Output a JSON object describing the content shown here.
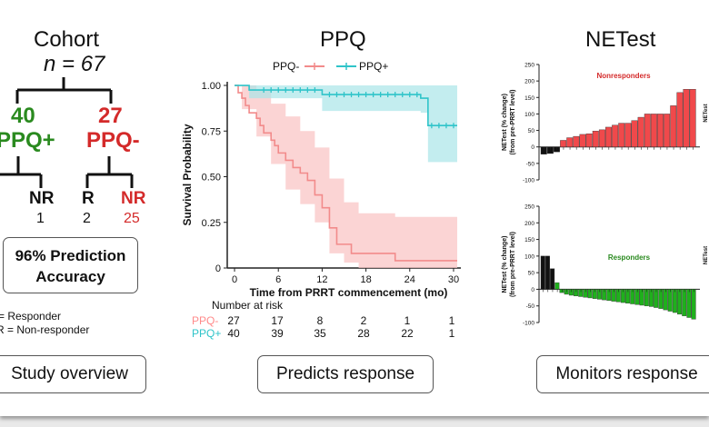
{
  "colors": {
    "green": "#2a8a1f",
    "red": "#d42a2a",
    "teal": "#2fc4c9",
    "pink": "#f28b8b",
    "bar_red": "#f0494b",
    "bar_green": "#1fb01c"
  },
  "left": {
    "title": "Cohort",
    "n_label": "n = 67",
    "groups": [
      {
        "count": "40",
        "label": "PPQ+"
      },
      {
        "count": "27",
        "label": "PPQ-"
      }
    ],
    "leaves": [
      {
        "label": "NR",
        "count": "1"
      },
      {
        "label": "R",
        "count": "2"
      },
      {
        "label": "NR",
        "count": "25"
      }
    ],
    "accuracy_line1": "96% Prediction",
    "accuracy_line2": "Accuracy",
    "legend_r": "= Responder",
    "legend_nr": "R = Non-responder",
    "footer": "Study overview"
  },
  "middle": {
    "title": "PPQ",
    "footer": "Predicts response",
    "risk_title": "Number at risk",
    "risk_rows": [
      {
        "label": "PPQ-",
        "values": [
          "27",
          "17",
          "8",
          "2",
          "1",
          "1"
        ]
      },
      {
        "label": "PPQ+",
        "values": [
          "40",
          "39",
          "35",
          "28",
          "22",
          "1"
        ]
      }
    ]
  },
  "right": {
    "title": "NETest",
    "footer": "Monitors response"
  },
  "chart_data": [
    {
      "type": "line",
      "subtype": "kaplan-meier",
      "xlabel": "Time from PRRT commencement (mo)",
      "ylabel": "Survival Probability",
      "xlim": [
        -1,
        31
      ],
      "ylim": [
        0,
        1.02
      ],
      "x_ticks": [
        0,
        6,
        12,
        18,
        24,
        30
      ],
      "y_ticks": [
        "0",
        "0.25",
        "0.50",
        "0.75",
        "1.00"
      ],
      "series": [
        {
          "name": "PPQ-",
          "color": "#f28b8b",
          "steps": [
            [
              0,
              1.0
            ],
            [
              0.5,
              0.96
            ],
            [
              1,
              0.93
            ],
            [
              1.5,
              0.89
            ],
            [
              2,
              0.85
            ],
            [
              3,
              0.82
            ],
            [
              3.5,
              0.78
            ],
            [
              4,
              0.74
            ],
            [
              5,
              0.7
            ],
            [
              5.5,
              0.67
            ],
            [
              6,
              0.63
            ],
            [
              7,
              0.59
            ],
            [
              8,
              0.55
            ],
            [
              9,
              0.52
            ],
            [
              10,
              0.48
            ],
            [
              11,
              0.4
            ],
            [
              12,
              0.33
            ],
            [
              13,
              0.22
            ],
            [
              14,
              0.13
            ],
            [
              16,
              0.08
            ],
            [
              22,
              0.04
            ],
            [
              30.5,
              0.04
            ]
          ],
          "ci_upper": [
            [
              0,
              1.0
            ],
            [
              1,
              1.0
            ],
            [
              3,
              0.97
            ],
            [
              5,
              0.9
            ],
            [
              7,
              0.83
            ],
            [
              9,
              0.75
            ],
            [
              11,
              0.66
            ],
            [
              13,
              0.49
            ],
            [
              15,
              0.36
            ],
            [
              17,
              0.3
            ],
            [
              22,
              0.28
            ],
            [
              30.5,
              0.28
            ]
          ],
          "ci_lower": [
            [
              0,
              1.0
            ],
            [
              1,
              0.87
            ],
            [
              3,
              0.72
            ],
            [
              5,
              0.57
            ],
            [
              7,
              0.43
            ],
            [
              9,
              0.35
            ],
            [
              11,
              0.25
            ],
            [
              13,
              0.08
            ],
            [
              15,
              0.03
            ],
            [
              17,
              0.0
            ],
            [
              30.5,
              0.0
            ]
          ]
        },
        {
          "name": "PPQ+",
          "color": "#2fc4c9",
          "steps": [
            [
              0,
              1.0
            ],
            [
              2,
              0.975
            ],
            [
              12,
              0.95
            ],
            [
              25.5,
              0.93
            ],
            [
              26.5,
              0.78
            ],
            [
              30.5,
              0.78
            ]
          ],
          "ci_upper": [
            [
              0,
              1.0
            ],
            [
              30.5,
              1.0
            ]
          ],
          "ci_lower": [
            [
              0,
              1.0
            ],
            [
              2,
              0.93
            ],
            [
              12,
              0.86
            ],
            [
              25.5,
              0.85
            ],
            [
              26.5,
              0.58
            ],
            [
              30.5,
              0.58
            ]
          ],
          "censor_x": [
            4,
            5,
            6,
            7,
            8,
            9,
            10,
            11,
            13,
            14,
            15,
            16,
            17,
            18,
            19,
            20,
            21,
            22,
            23,
            24,
            25,
            27,
            28,
            29,
            30
          ]
        }
      ],
      "legend": [
        "PPQ-",
        "PPQ+"
      ],
      "legend_position": "top"
    },
    {
      "type": "bar",
      "title": "Nonresponders",
      "ylabel": "NETest (% change)\n(from pre-PRRT level)",
      "y_ticks": [
        "-100",
        "-50",
        "0",
        "50",
        "100",
        "150",
        "200",
        "250"
      ],
      "ylim": [
        -100,
        250
      ],
      "values": [
        -22,
        -20,
        -15,
        20,
        28,
        32,
        38,
        40,
        48,
        52,
        60,
        66,
        72,
        72,
        80,
        90,
        100,
        100,
        100,
        100,
        125,
        165,
        175,
        175
      ],
      "colors": [
        "#111111",
        "#111111",
        "#111111",
        "#f0494b"
      ],
      "side_label": "NETest"
    },
    {
      "type": "bar",
      "title": "Responders",
      "ylabel": "NETest (% change)\n(from pre-PRRT level)",
      "y_ticks": [
        "-100",
        "-50",
        "0",
        "50",
        "100",
        "150",
        "200",
        "250"
      ],
      "ylim": [
        -100,
        250
      ],
      "values": [
        100,
        100,
        62,
        20,
        -10,
        -15,
        -18,
        -20,
        -22,
        -24,
        -26,
        -28,
        -30,
        -32,
        -34,
        -36,
        -38,
        -40,
        -42,
        -44,
        -46,
        -48,
        -50,
        -52,
        -55,
        -58,
        -62,
        -66,
        -70,
        -75,
        -80,
        -85,
        -90
      ],
      "colors": [
        "#111111",
        "#111111",
        "#111111",
        "#1fb01c"
      ],
      "side_label": "NETest"
    }
  ]
}
